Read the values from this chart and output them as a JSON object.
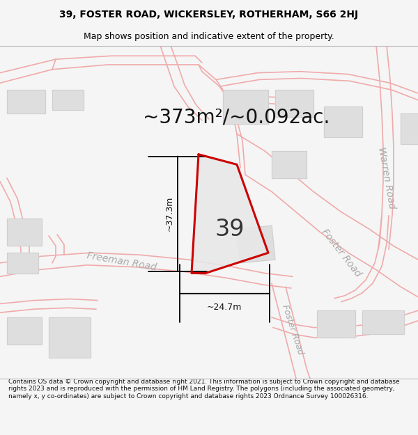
{
  "title_line1": "39, FOSTER ROAD, WICKERSLEY, ROTHERHAM, S66 2HJ",
  "title_line2": "Map shows position and indicative extent of the property.",
  "footer_text": "Contains OS data © Crown copyright and database right 2021. This information is subject to Crown copyright and database rights 2023 and is reproduced with the permission of HM Land Registry. The polygons (including the associated geometry, namely x, y co-ordinates) are subject to Crown copyright and database rights 2023 Ordnance Survey 100026316.",
  "area_label": "~373m²/~0.092ac.",
  "plot_number": "39",
  "dim_vertical": "~37.3m",
  "dim_horizontal": "~24.7m",
  "bg_color": "#f5f5f5",
  "map_bg": "#ffffff",
  "road_color": "#f0aaaa",
  "building_color": "#dedede",
  "building_edge": "#cccccc",
  "plot_fill": "#e8e8e8",
  "plot_edge_color": "#cc0000",
  "plot_edge_width": 2.2,
  "title_fontsize": 10,
  "subtitle_fontsize": 9,
  "area_fontsize": 20,
  "plot_num_fontsize": 24,
  "road_label_color": "#aaaaaa",
  "dim_label_fontsize": 9
}
